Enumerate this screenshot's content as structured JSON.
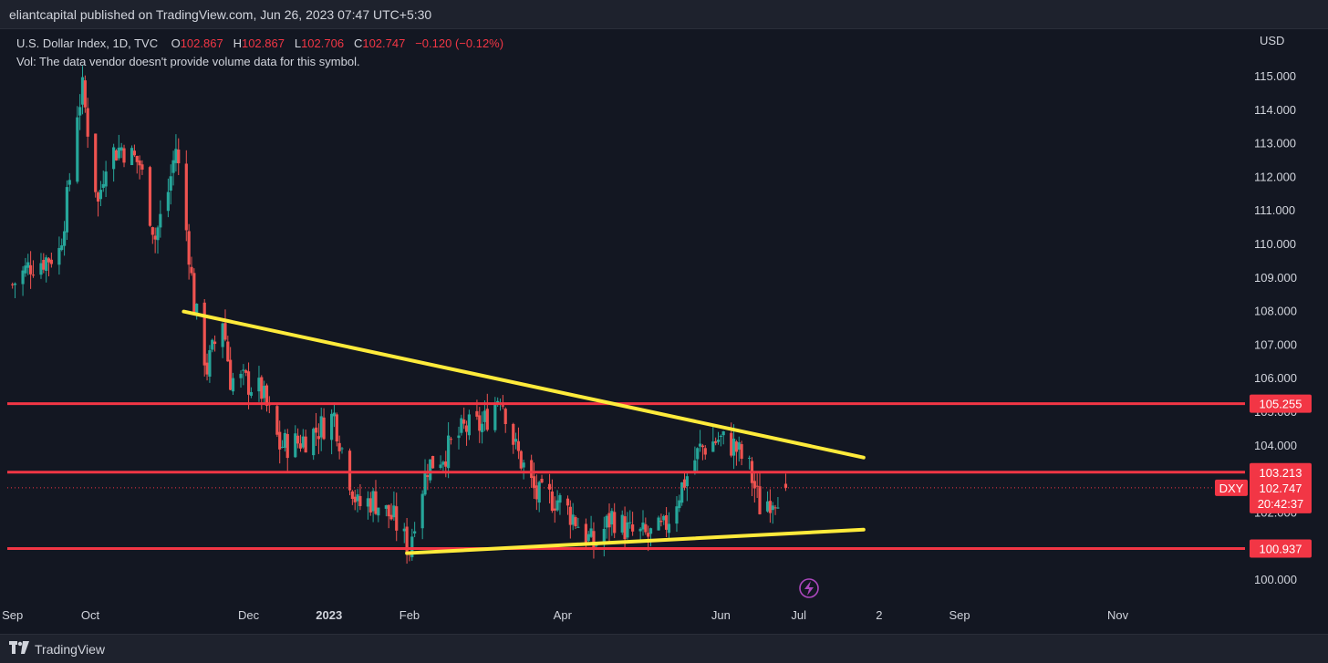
{
  "header": {
    "published_text": "eliantcapital published on TradingView.com, Jun 26, 2023 07:47 UTC+5:30"
  },
  "legend": {
    "symbol": "U.S. Dollar Index, 1D, TVC",
    "o_label": "O",
    "o_value": "102.867",
    "h_label": "H",
    "h_value": "102.867",
    "l_label": "L",
    "l_value": "102.706",
    "c_label": "C",
    "c_value": "102.747",
    "change": "−0.120 (−0.12%)",
    "volume_note": "Vol: The data vendor doesn't provide volume data for this symbol."
  },
  "price_axis": {
    "currency": "USD"
  },
  "footer": {
    "brand": "TradingView"
  },
  "colors": {
    "background": "#131722",
    "up_candle": "#26a69a",
    "down_candle": "#ef5350",
    "horizontal_levels": "#f23645",
    "trendlines": "#ffeb3b",
    "price_label": "#f23645",
    "flash_icon": "#ab47bc"
  },
  "chart_data": {
    "type": "candlestick",
    "title": "U.S. Dollar Index, 1D, TVC",
    "ylabel": "USD",
    "ylim": [
      99.2,
      116.0
    ],
    "y_ticks": [
      100,
      101,
      102,
      103,
      104,
      105,
      106,
      107,
      108,
      109,
      110,
      111,
      112,
      113,
      114,
      115
    ],
    "y_tick_labels": [
      "100.000",
      "101.000",
      "102.000",
      "103.000",
      "104.000",
      "105.000",
      "106.000",
      "107.000",
      "108.000",
      "109.000",
      "110.000",
      "111.000",
      "112.000",
      "113.000",
      "114.000",
      "115.000"
    ],
    "x_tick_labels": [
      "Sep",
      "Oct",
      "Dec",
      "2023",
      "Feb",
      "Apr",
      "Jun",
      "Jul",
      "2",
      "Sep",
      "Nov"
    ],
    "x_tick_dates": [
      "2022-09-01",
      "2022-10-01",
      "2022-12-01",
      "2023-01-01",
      "2023-02-01",
      "2023-04-01",
      "2023-06-01",
      "2023-07-01",
      "2023-08-01",
      "2023-09-01",
      "2023-11-01"
    ],
    "xlim": [
      "2022-08-30",
      "2023-12-20"
    ],
    "grid": false,
    "horizontal_levels": [
      {
        "value": 105.255,
        "label": "105.255"
      },
      {
        "value": 103.213,
        "label": "103.213"
      },
      {
        "value": 100.937,
        "label": "100.937"
      }
    ],
    "current_price": {
      "symbol": "DXY",
      "value": 102.747,
      "label": "102.747",
      "countdown": "20:42:37"
    },
    "trendlines": [
      {
        "name": "descending resistance",
        "start": [
          "2022-11-06",
          108.0
        ],
        "end": [
          "2023-07-26",
          103.65
        ]
      },
      {
        "name": "ascending support",
        "start": [
          "2023-01-31",
          100.8
        ],
        "end": [
          "2023-07-26",
          101.5
        ]
      }
    ],
    "series_close": [
      [
        "2022-09-01",
        108.8
      ],
      [
        "2022-09-08",
        109.4
      ],
      [
        "2022-09-15",
        109.6
      ],
      [
        "2022-09-19",
        109.8
      ],
      [
        "2022-09-22",
        111.3
      ],
      [
        "2022-09-26",
        114.0
      ],
      [
        "2022-09-28",
        114.6
      ],
      [
        "2022-10-04",
        111.2
      ],
      [
        "2022-10-07",
        112.6
      ],
      [
        "2022-10-13",
        112.9
      ],
      [
        "2022-10-20",
        112.4
      ],
      [
        "2022-10-26",
        110.2
      ],
      [
        "2022-10-31",
        111.6
      ],
      [
        "2022-11-03",
        112.9
      ],
      [
        "2022-11-08",
        109.8
      ],
      [
        "2022-11-10",
        108.2
      ],
      [
        "2022-11-15",
        106.3
      ],
      [
        "2022-11-21",
        107.8
      ],
      [
        "2022-11-24",
        106.0
      ],
      [
        "2022-11-30",
        105.9
      ],
      [
        "2022-12-06",
        105.6
      ],
      [
        "2022-12-13",
        104.0
      ],
      [
        "2022-12-20",
        104.1
      ],
      [
        "2022-12-28",
        104.5
      ],
      [
        "2023-01-03",
        104.9
      ],
      [
        "2023-01-06",
        103.9
      ],
      [
        "2023-01-12",
        102.2
      ],
      [
        "2023-01-18",
        102.4
      ],
      [
        "2023-01-26",
        101.8
      ],
      [
        "2023-02-01",
        100.9
      ],
      [
        "2023-02-03",
        101.9
      ],
      [
        "2023-02-08",
        103.4
      ],
      [
        "2023-02-15",
        103.8
      ],
      [
        "2023-02-22",
        104.5
      ],
      [
        "2023-03-01",
        104.6
      ],
      [
        "2023-03-08",
        105.6
      ],
      [
        "2023-03-14",
        103.9
      ],
      [
        "2023-03-22",
        102.5
      ],
      [
        "2023-03-30",
        102.4
      ],
      [
        "2023-04-05",
        101.9
      ],
      [
        "2023-04-13",
        101.0
      ],
      [
        "2023-04-20",
        101.9
      ],
      [
        "2023-04-27",
        101.4
      ],
      [
        "2023-05-04",
        101.3
      ],
      [
        "2023-05-10",
        101.5
      ],
      [
        "2023-05-17",
        102.8
      ],
      [
        "2023-05-24",
        103.9
      ],
      [
        "2023-05-31",
        104.2
      ],
      [
        "2023-06-06",
        104.0
      ],
      [
        "2023-06-12",
        103.3
      ],
      [
        "2023-06-16",
        102.2
      ],
      [
        "2023-06-21",
        102.5
      ],
      [
        "2023-06-26",
        102.747
      ]
    ]
  }
}
